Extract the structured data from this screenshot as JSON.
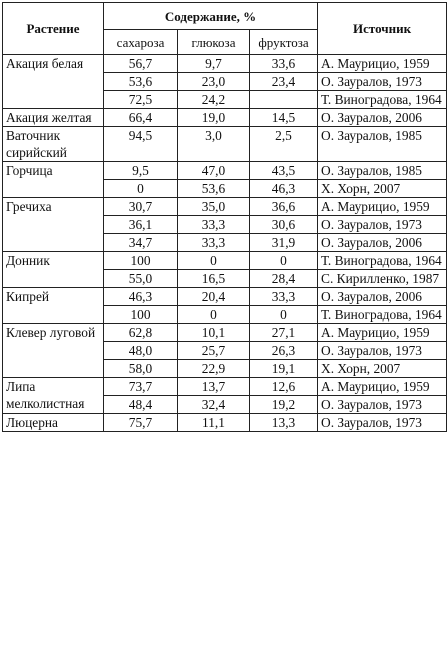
{
  "headers": {
    "plant": "Растение",
    "content": "Содержание, %",
    "sucrose": "сахароза",
    "glucose": "глюкоза",
    "fructose": "фруктоза",
    "source": "Источник"
  },
  "groups": [
    {
      "plant": "Акация белая",
      "rows": [
        [
          "56,7",
          "9,7",
          "33,6",
          "А. Маурицио, 1959"
        ],
        [
          "53,6",
          "23,0",
          "23,4",
          "О. Зауралов, 1973"
        ],
        [
          "72,5",
          "24,2",
          "",
          "Т. Виноградова, 1964"
        ]
      ]
    },
    {
      "plant": "Акация желтая",
      "rows": [
        [
          "66,4",
          "19,0",
          "14,5",
          "О. Зауралов, 2006"
        ]
      ]
    },
    {
      "plant": "Ваточник сирийский",
      "rows": [
        [
          "94,5",
          "3,0",
          "2,5",
          "О. Зауралов, 1985"
        ]
      ]
    },
    {
      "plant": "Горчица",
      "rows": [
        [
          "9,5",
          "47,0",
          "43,5",
          "О. Зауралов, 1985"
        ],
        [
          "0",
          "53,6",
          "46,3",
          "Х. Хорн, 2007"
        ]
      ]
    },
    {
      "plant": "Гречиха",
      "rows": [
        [
          "30,7",
          "35,0",
          "36,6",
          "А. Маурицио, 1959"
        ],
        [
          "36,1",
          "33,3",
          "30,6",
          "О. Зауралов, 1973"
        ],
        [
          "34,7",
          "33,3",
          "31,9",
          "О. Зауралов, 2006"
        ]
      ]
    },
    {
      "plant": "Донник",
      "rows": [
        [
          "100",
          "0",
          "0",
          "Т. Виноградова, 1964"
        ],
        [
          "55,0",
          "16,5",
          "28,4",
          "С. Кирилленко, 1987"
        ]
      ]
    },
    {
      "plant": "Кипрей",
      "rows": [
        [
          "46,3",
          "20,4",
          "33,3",
          "О. Зауралов, 2006"
        ],
        [
          "100",
          "0",
          "0",
          "Т. Виноградова, 1964"
        ]
      ]
    },
    {
      "plant": "Клевер луговой",
      "rows": [
        [
          "62,8",
          "10,1",
          "27,1",
          "А. Маурицио, 1959"
        ],
        [
          "48,0",
          "25,7",
          "26,3",
          "О. Зауралов, 1973"
        ],
        [
          "58,0",
          "22,9",
          "19,1",
          "Х. Хорн, 2007"
        ]
      ]
    },
    {
      "plant": "Липа мелколистная",
      "rows": [
        [
          "73,7",
          "13,7",
          "12,6",
          "А. Маурицио, 1959"
        ],
        [
          "48,4",
          "32,4",
          "19,2",
          "О. Зауралов, 1973"
        ]
      ]
    },
    {
      "plant": "Люцерна",
      "rows": [
        [
          "75,7",
          "11,1",
          "13,3",
          "О. Зауралов, 1973"
        ]
      ]
    }
  ]
}
